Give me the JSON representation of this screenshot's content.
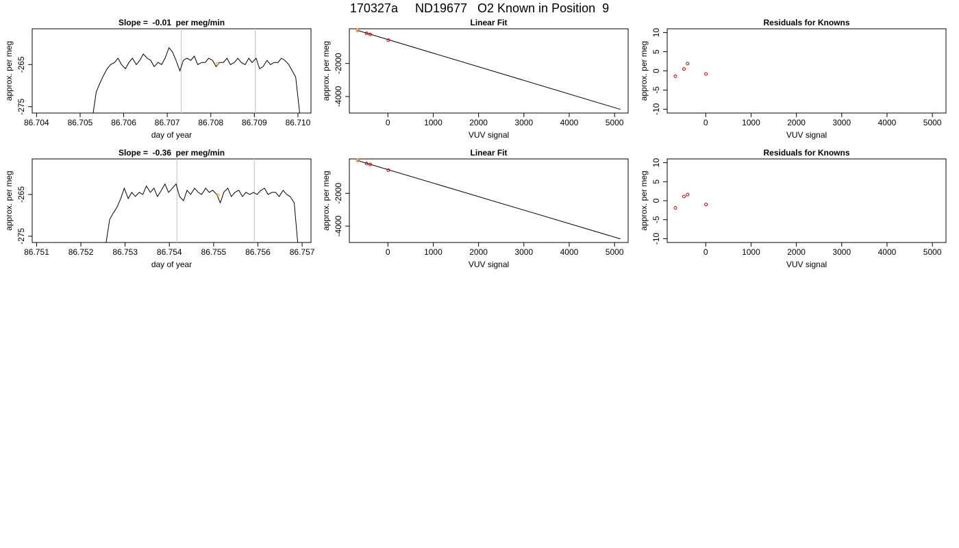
{
  "page_title": "170327a     ND19677   O2 Known in Position  9",
  "colors": {
    "trace": "#000000",
    "marker": "#ff8c00",
    "residual": "#cc0000",
    "guide": "#c8c8c8"
  },
  "chart_data": [
    {
      "type": "line",
      "title": "Slope =  -0.01  per meg/min",
      "xlabel": "day of year",
      "ylabel": "approx. per meg",
      "xlim": [
        86.7039,
        86.7103
      ],
      "ylim": [
        -276.5,
        -256.5
      ],
      "xticks": [
        "86.704",
        "86.705",
        "86.706",
        "86.707",
        "86.708",
        "86.709",
        "86.710"
      ],
      "yticks": [
        "-265",
        "-275"
      ],
      "vlines": [
        86.70732,
        86.70902
      ],
      "series": [
        {
          "x": [
            86.7053,
            86.70537,
            86.70545,
            86.70554,
            86.70562,
            86.7057,
            86.70579,
            86.70587,
            86.70595,
            86.70604,
            86.70612,
            86.7062,
            86.70629,
            86.70637,
            86.70645,
            86.70654,
            86.70662,
            86.7067,
            86.70679,
            86.70687,
            86.70695,
            86.70704,
            86.70712,
            86.7072,
            86.70729,
            86.70737,
            86.70745,
            86.70754,
            86.70762,
            86.7077,
            86.70779,
            86.70787,
            86.70795,
            86.70804,
            86.70812,
            86.7082,
            86.70829,
            86.70837,
            86.70845,
            86.70854,
            86.70862,
            86.7087,
            86.70879,
            86.70887,
            86.70895,
            86.70904,
            86.70912,
            86.7092,
            86.70929,
            86.70937,
            86.70945,
            86.70954,
            86.70962,
            86.7097,
            86.70979,
            86.70987,
            86.70995,
            86.71004
          ],
          "y": [
            -276.5,
            -271.5,
            -269.5,
            -267.5,
            -266.0,
            -265.0,
            -264.5,
            -263.5,
            -265.0,
            -266.0,
            -264.5,
            -263.5,
            -265.0,
            -264.0,
            -262.5,
            -263.5,
            -264.0,
            -265.5,
            -264.5,
            -265.0,
            -263.5,
            -261.0,
            -262.0,
            -264.0,
            -266.5,
            -264.0,
            -263.5,
            -264.0,
            -263.0,
            -265.0,
            -264.5,
            -264.5,
            -263.5,
            -264.0,
            -265.5,
            -264.5,
            -264.5,
            -263.5,
            -265.0,
            -264.5,
            -263.5,
            -264.5,
            -265.0,
            -263.5,
            -264.5,
            -263.5,
            -266.0,
            -265.5,
            -264.0,
            -265.0,
            -264.5,
            -264.5,
            -263.5,
            -264.0,
            -265.0,
            -266.5,
            -268.0,
            -276.5
          ]
        }
      ],
      "marker": {
        "x": 86.70815,
        "y": -264.8
      }
    },
    {
      "type": "scatter",
      "title": "Linear Fit",
      "xlabel": "VUV signal",
      "ylabel": "approx. per meg",
      "xlim": [
        -850,
        5300
      ],
      "ylim": [
        -5000,
        100
      ],
      "xticks": [
        0,
        1000,
        2000,
        3000,
        4000,
        5000
      ],
      "yticks": [
        -2000,
        -4000
      ],
      "fit_line": [
        [
          -670,
          0
        ],
        [
          5130,
          -4780
        ]
      ],
      "points": [
        [
          -670,
          10
        ],
        [
          -470,
          -180
        ],
        [
          -390,
          -240
        ],
        [
          10,
          -590
        ]
      ],
      "highlight": [
        [
          -670,
          20
        ]
      ]
    },
    {
      "type": "scatter",
      "title": "Residuals for Knowns",
      "xlabel": "VUV signal",
      "ylabel": "approx. per meg",
      "xlim": [
        -850,
        5300
      ],
      "ylim": [
        -11,
        11
      ],
      "xticks": [
        0,
        1000,
        2000,
        3000,
        4000,
        5000
      ],
      "yticks": [
        10,
        5,
        0,
        -5,
        -10
      ],
      "points": [
        [
          -670,
          -1.4
        ],
        [
          -480,
          0.5
        ],
        [
          -400,
          1.9
        ],
        [
          5,
          -0.8
        ]
      ]
    },
    {
      "type": "line",
      "title": "Slope =  -0.36  per meg/min",
      "xlabel": "day of year",
      "ylabel": "approx. per meg",
      "xlim": [
        86.7509,
        86.7572
      ],
      "ylim": [
        -276.5,
        -256.5
      ],
      "xticks": [
        "86.751",
        "86.752",
        "86.753",
        "86.754",
        "86.755",
        "86.756",
        "86.757"
      ],
      "yticks": [
        "-265",
        "-275"
      ],
      "vlines": [
        86.75417,
        86.75592
      ],
      "series": [
        {
          "x": [
            86.75257,
            86.75265,
            86.75273,
            86.75282,
            86.7529,
            86.75298,
            86.75307,
            86.75315,
            86.75323,
            86.75332,
            86.7534,
            86.75348,
            86.75357,
            86.75365,
            86.75373,
            86.75382,
            86.7539,
            86.75398,
            86.75407,
            86.75415,
            86.75423,
            86.75432,
            86.7544,
            86.75448,
            86.75457,
            86.75465,
            86.75473,
            86.75482,
            86.7549,
            86.75498,
            86.75507,
            86.75515,
            86.75523,
            86.75532,
            86.7554,
            86.75548,
            86.75557,
            86.75565,
            86.75573,
            86.75582,
            86.7559,
            86.75598,
            86.75607,
            86.75615,
            86.75623,
            86.75632,
            86.7564,
            86.75648,
            86.75657,
            86.75665,
            86.75673,
            86.75682,
            86.7569
          ],
          "y": [
            -276.5,
            -271.0,
            -269.5,
            -268.0,
            -266.0,
            -263.5,
            -266.0,
            -264.5,
            -265.5,
            -264.5,
            -265.0,
            -263.0,
            -264.5,
            -263.5,
            -265.5,
            -264.0,
            -262.5,
            -264.5,
            -263.5,
            -262.5,
            -265.5,
            -266.5,
            -264.0,
            -265.0,
            -263.5,
            -264.5,
            -265.0,
            -263.5,
            -264.5,
            -264.0,
            -265.0,
            -267.0,
            -264.5,
            -263.5,
            -265.5,
            -264.5,
            -264.0,
            -265.5,
            -264.5,
            -265.0,
            -264.5,
            -265.0,
            -264.0,
            -263.5,
            -265.0,
            -264.5,
            -264.5,
            -265.5,
            -264.0,
            -265.0,
            -265.5,
            -267.0,
            -276.5
          ]
        }
      ],
      "marker": {
        "x": 86.7551,
        "y": -265.2
      }
    },
    {
      "type": "scatter",
      "title": "Linear Fit",
      "xlabel": "VUV signal",
      "ylabel": "approx. per meg",
      "xlim": [
        -850,
        5300
      ],
      "ylim": [
        -5000,
        100
      ],
      "xticks": [
        0,
        1000,
        2000,
        3000,
        4000,
        5000
      ],
      "yticks": [
        -2000,
        -4000
      ],
      "fit_line": [
        [
          -670,
          0
        ],
        [
          5130,
          -4780
        ]
      ],
      "points": [
        [
          -670,
          10
        ],
        [
          -470,
          -180
        ],
        [
          -390,
          -240
        ],
        [
          10,
          -590
        ]
      ],
      "highlight": [
        [
          -670,
          20
        ]
      ]
    },
    {
      "type": "scatter",
      "title": "Residuals for Knowns",
      "xlabel": "VUV signal",
      "ylabel": "approx. per meg",
      "xlim": [
        -850,
        5300
      ],
      "ylim": [
        -11,
        11
      ],
      "xticks": [
        0,
        1000,
        2000,
        3000,
        4000,
        5000
      ],
      "yticks": [
        10,
        5,
        0,
        -5,
        -10
      ],
      "points": [
        [
          -670,
          -1.9
        ],
        [
          -480,
          1.1
        ],
        [
          -400,
          1.6
        ],
        [
          5,
          -1.0
        ]
      ]
    }
  ]
}
